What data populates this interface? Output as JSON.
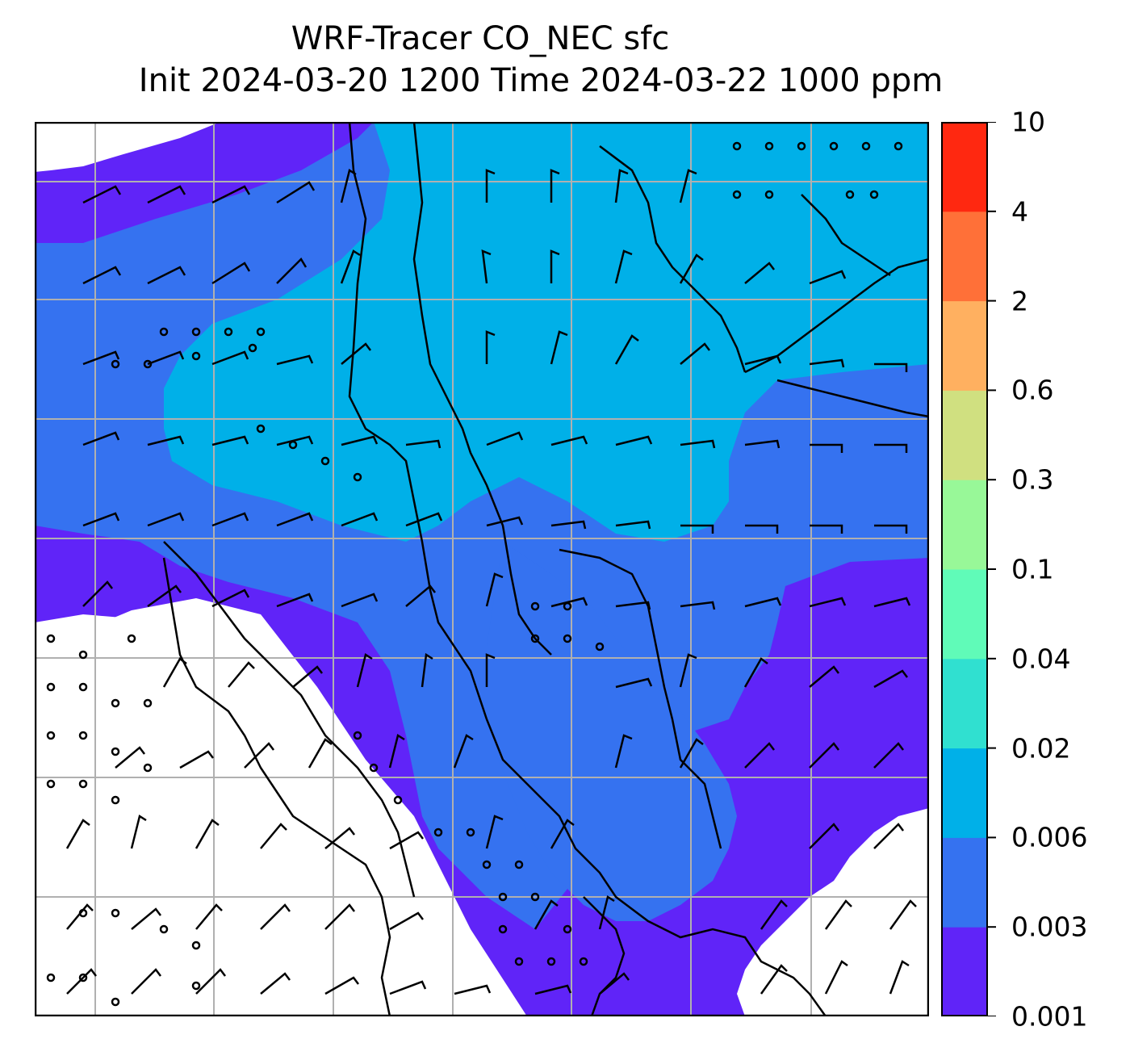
{
  "title": {
    "line1": "WRF-Tracer CO_NEC sfc",
    "line2": "Init 2024-03-20 1200 Time 2024-03-22 1000 ppm"
  },
  "colorbar": {
    "ticks": [
      "0.001",
      "0.003",
      "0.006",
      "0.02",
      "0.04",
      "0.1",
      "0.3",
      "0.6",
      "2",
      "4",
      "10"
    ],
    "colors": [
      "#6024f8",
      "#3572f0",
      "#00b0e8",
      "#30e0d0",
      "#60fbb8",
      "#98f898",
      "#d0e080",
      "#ffb060",
      "#ff7038",
      "#ff2810"
    ]
  },
  "map": {
    "gridlines": {
      "lon_count": 7,
      "lat_count": 7,
      "color": "#b0b0b0"
    },
    "background": "#ffffff",
    "line_color": "#000000",
    "wind_barbs": true,
    "calm_circles": true
  }
}
